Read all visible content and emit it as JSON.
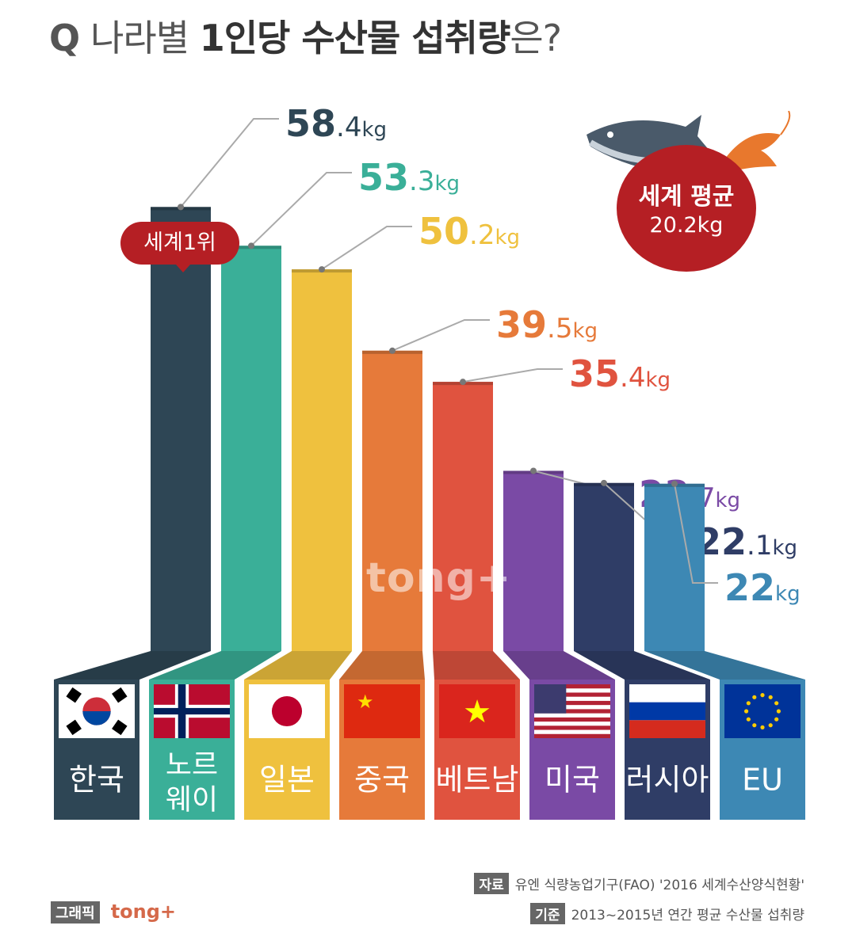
{
  "title": {
    "q": "Q",
    "pre": "나라별 ",
    "bold": "1인당 수산물 섭취량",
    "post": "은?"
  },
  "rank_badge": "세계1위",
  "world_average": {
    "label": "세계 평균",
    "value": "20.2kg"
  },
  "watermark": "tong+",
  "source": {
    "tag": "자료",
    "text": "유엔 식량농업기구(FAO) '2016 세계수산양식현황'"
  },
  "basis": {
    "tag": "기준",
    "text": "2013~2015년 연간 평균 수산물 섭취량"
  },
  "credit": {
    "tag": "그래픽",
    "brand": "tong+"
  },
  "chart_data": {
    "type": "bar",
    "categories": [
      "한국",
      "노르웨이",
      "일본",
      "중국",
      "베트남",
      "미국",
      "러시아",
      "EU"
    ],
    "values": [
      58.4,
      53.3,
      50.2,
      39.5,
      35.4,
      23.7,
      22.1,
      22
    ],
    "unit": "kg",
    "value_labels": [
      {
        "int": "58",
        "dec": ".4",
        "unit": "kg"
      },
      {
        "int": "53",
        "dec": ".3",
        "unit": "kg"
      },
      {
        "int": "50",
        "dec": ".2",
        "unit": "kg"
      },
      {
        "int": "39",
        "dec": ".5",
        "unit": "kg"
      },
      {
        "int": "35",
        "dec": ".4",
        "unit": "kg"
      },
      {
        "int": "23",
        "dec": ".7",
        "unit": "kg"
      },
      {
        "int": "22",
        "dec": ".1",
        "unit": "kg"
      },
      {
        "int": "22",
        "dec": "",
        "unit": "kg"
      }
    ],
    "category_lines": [
      [
        "한국"
      ],
      [
        "노르",
        "웨이"
      ],
      [
        "일본"
      ],
      [
        "중국"
      ],
      [
        "베트남"
      ],
      [
        "미국"
      ],
      [
        "러시아"
      ],
      [
        "EU"
      ]
    ],
    "flags": [
      "korea-flag",
      "norway-flag",
      "japan-flag",
      "china-flag",
      "vietnam-flag",
      "usa-flag",
      "russia-flag",
      "eu-flag"
    ],
    "colors": [
      "#2e4655",
      "#3aaf98",
      "#efc13e",
      "#e67a3a",
      "#e0533f",
      "#7a4aa5",
      "#2f3d66",
      "#3d88b4"
    ],
    "label_colors": [
      "#2e4655",
      "#3aaf98",
      "#efc13e",
      "#e67a3a",
      "#e0533f",
      "#7a4aa5",
      "#2f3d66",
      "#3d88b4"
    ],
    "ylim": [
      0,
      60
    ],
    "grid": false,
    "legend": "none"
  }
}
